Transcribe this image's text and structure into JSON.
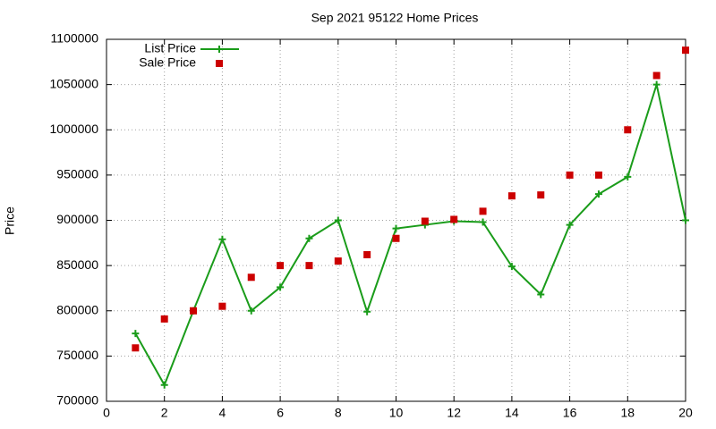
{
  "chart_data": {
    "type": "line",
    "title": "Sep 2021 95122 Home Prices",
    "y_label": "Price",
    "x": [
      1,
      2,
      3,
      4,
      5,
      6,
      7,
      8,
      9,
      10,
      11,
      12,
      13,
      14,
      15,
      16,
      17,
      18,
      19,
      20
    ],
    "series": [
      {
        "name": "List Price",
        "color": "#1a9c1a",
        "style": "linespoints",
        "values": [
          775000,
          718000,
          800000,
          879000,
          800000,
          826000,
          880000,
          900000,
          799000,
          891000,
          895000,
          899000,
          898000,
          849000,
          818000,
          895000,
          929000,
          948000,
          1050000,
          900000
        ]
      },
      {
        "name": "Sale Price",
        "color": "#cc0000",
        "style": "points",
        "values": [
          759000,
          791000,
          800000,
          805000,
          837000,
          850000,
          850000,
          855000,
          862000,
          880000,
          899000,
          901000,
          910000,
          927000,
          928000,
          950000,
          950000,
          1000000,
          1060000,
          1088000
        ]
      }
    ],
    "xlim": [
      0,
      20
    ],
    "xticks": [
      0,
      2,
      4,
      6,
      8,
      10,
      12,
      14,
      16,
      18,
      20
    ],
    "ylim": [
      700000,
      1100000
    ],
    "yticks": [
      700000,
      750000,
      800000,
      850000,
      900000,
      950000,
      1000000,
      1050000,
      1100000
    ],
    "grid": true,
    "legend": "top-left"
  }
}
